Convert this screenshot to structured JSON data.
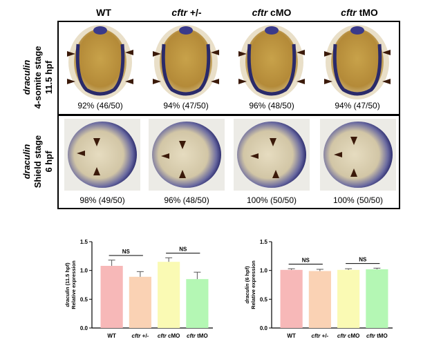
{
  "columns": [
    {
      "gene": "",
      "label": "WT"
    },
    {
      "gene": "cftr",
      "label": " +/-"
    },
    {
      "gene": "cftr",
      "label": " cMO"
    },
    {
      "gene": "cftr",
      "label": " tMO"
    }
  ],
  "rows": [
    {
      "gene": "draculin",
      "stage": "4-somite stage",
      "time": "11.5 hpf",
      "percents": [
        "92% (46/50)",
        "94% (47/50)",
        "96% (48/50)",
        "94% (47/50)"
      ]
    },
    {
      "gene": "draculin",
      "stage": "Shield stage",
      "time": "6 hpf",
      "percents": [
        "98% (49/50)",
        "96% (48/50)",
        "100% (50/50)",
        "100% (50/50)"
      ]
    }
  ],
  "chart_data": [
    {
      "type": "bar",
      "categories": [
        "WT",
        "cftr +/-",
        "cftr cMO",
        "cftr tMO"
      ],
      "values": [
        1.08,
        0.89,
        1.15,
        0.85
      ],
      "errors": [
        0.1,
        0.09,
        0.07,
        0.12
      ],
      "ylabel_gene": "draculin",
      "ylabel_time": " (11.5 hpf)",
      "ylabel2": "Relative expression",
      "ylim": [
        0,
        1.5
      ],
      "yticks": [
        "0.0",
        "0.5",
        "1.0",
        "1.5"
      ],
      "significance": [
        "NS",
        "NS"
      ],
      "colors": [
        "#f7b8b8",
        "#fad2b4",
        "#fafab4",
        "#b4f7b4"
      ]
    },
    {
      "type": "bar",
      "categories": [
        "WT",
        "cftr +/-",
        "cftr cMO",
        "cftr tMO"
      ],
      "values": [
        1.01,
        0.99,
        1.01,
        1.02
      ],
      "errors": [
        0.02,
        0.03,
        0.02,
        0.02
      ],
      "ylabel_gene": "draculin",
      "ylabel_time": " (6 hpf)",
      "ylabel2": "Relative expression",
      "ylim": [
        0,
        1.5
      ],
      "yticks": [
        "0.0",
        "0.5",
        "1.0",
        "1.5"
      ],
      "significance": [
        "NS",
        "NS"
      ],
      "colors": [
        "#f7b8b8",
        "#fad2b4",
        "#fafab4",
        "#b4f7b4"
      ]
    }
  ]
}
